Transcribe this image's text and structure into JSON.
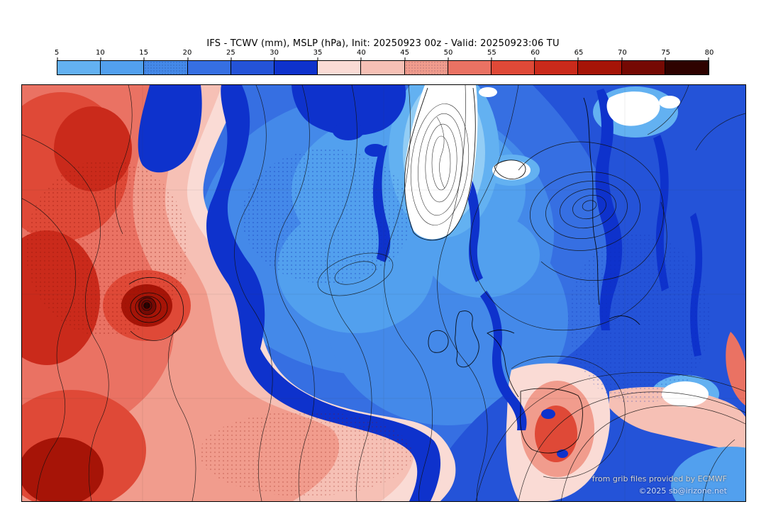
{
  "title": "IFS - TCWV (mm), MSLP (hPa), Init: 20250923 00z - Valid: 20250923:06 TU",
  "colorbar": {
    "unit": "mm",
    "ticks": [
      "5",
      "10",
      "15",
      "20",
      "25",
      "30",
      "35",
      "40",
      "45",
      "50",
      "55",
      "60",
      "65",
      "70",
      "75",
      "80"
    ],
    "colors": [
      "#63b1f1",
      "#52a0ee",
      "#4489e9",
      "#366fe2",
      "#2453d8",
      "#0e32cc",
      "#fadbd5",
      "#f6c0b5",
      "#f19c8d",
      "#ea7263",
      "#df4937",
      "#ca2a1b",
      "#a61407",
      "#750903",
      "#2e0200"
    ],
    "stippled_cells": [
      2,
      8
    ]
  },
  "map_colors": {
    "white_region": "#ffffff",
    "lightest_blue": "#93cdf5"
  },
  "credits": {
    "line1": "from grib files provided by ECMWF",
    "line2": "©2025 sb@irizone.net"
  }
}
